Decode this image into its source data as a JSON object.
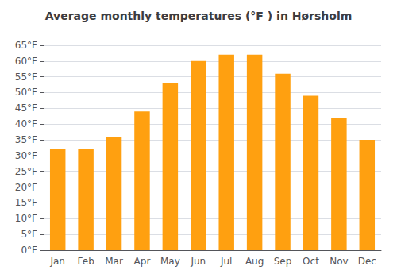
{
  "chart_data": {
    "type": "bar",
    "title": "Average monthly temperatures (°F ) in Hørsholm",
    "categories": [
      "Jan",
      "Feb",
      "Mar",
      "Apr",
      "May",
      "Jun",
      "Jul",
      "Aug",
      "Sep",
      "Oct",
      "Nov",
      "Dec"
    ],
    "values": [
      32,
      32,
      36,
      44,
      53,
      60,
      62,
      62,
      56,
      49,
      42,
      35
    ],
    "color": "#FFA010",
    "ylim": [
      0,
      68
    ],
    "yticks": [
      {
        "value": 0,
        "label": "0°F"
      },
      {
        "value": 5,
        "label": "5°F"
      },
      {
        "value": 10,
        "label": "10°F"
      },
      {
        "value": 15,
        "label": "15°F"
      },
      {
        "value": 20,
        "label": "20°F"
      },
      {
        "value": 25,
        "label": "25°F"
      },
      {
        "value": 30,
        "label": "30°F"
      },
      {
        "value": 35,
        "label": "35°F"
      },
      {
        "value": 40,
        "label": "40°F"
      },
      {
        "value": 45,
        "label": "45°F"
      },
      {
        "value": 50,
        "label": "50°F"
      },
      {
        "value": 55,
        "label": "55°F"
      },
      {
        "value": 60,
        "label": "60°F"
      },
      {
        "value": 65,
        "label": "65°F"
      }
    ],
    "grid": true
  }
}
